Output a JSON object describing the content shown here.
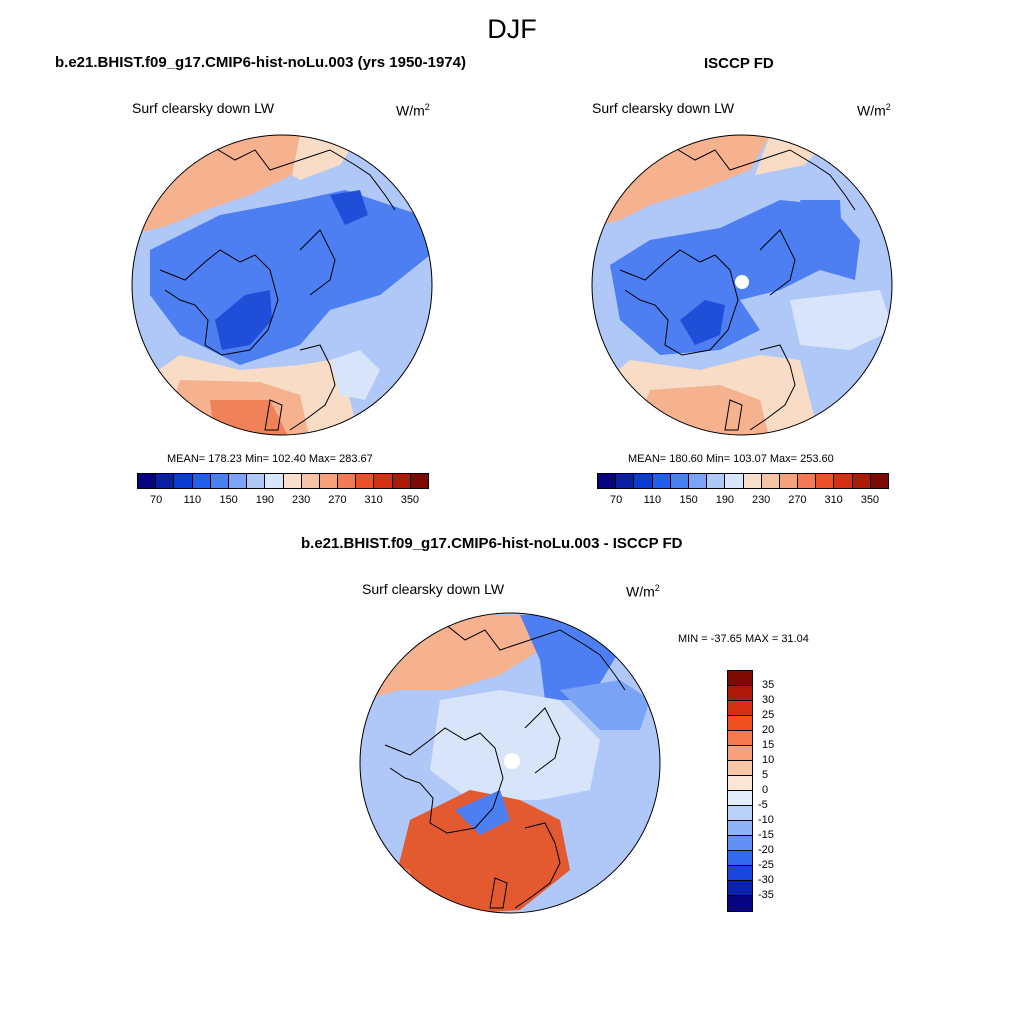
{
  "title": "DJF",
  "panels": [
    {
      "case_title": "b.e21.BHIST.f09_g17.CMIP6-hist-noLu.003 (yrs 1950-1974)",
      "variable": "Surf clearsky down LW",
      "units": "W/m",
      "units_exp": "2",
      "stats": "MEAN= 178.23  Min= 102.40  Max= 283.67",
      "stat_values": {
        "mean": 178.23,
        "min": 102.4,
        "max": 283.67
      }
    },
    {
      "case_title": "ISCCP FD",
      "variable": "Surf clearsky down LW",
      "units": "W/m",
      "units_exp": "2",
      "stats": "MEAN= 180.60  Min= 103.07  Max= 253.60",
      "stat_values": {
        "mean": 180.6,
        "min": 103.07,
        "max": 253.6
      }
    },
    {
      "case_title": "b.e21.BHIST.f09_g17.CMIP6-hist-noLu.003 - ISCCP FD",
      "variable": "Surf clearsky down LW",
      "units": "W/m",
      "units_exp": "2",
      "stats": "MIN = -37.65 MAX =  31.04",
      "stat_values": {
        "min": -37.65,
        "max": 31.04
      }
    }
  ],
  "colorbar_main": {
    "labels": [
      "70",
      "110",
      "150",
      "190",
      "230",
      "270",
      "310",
      "350"
    ],
    "colors": [
      "#08037f",
      "#0a1fa8",
      "#0b3cd2",
      "#1f5ef0",
      "#4a80f5",
      "#7ba3f7",
      "#aec8f8",
      "#d8e6fb",
      "#f9e0cc",
      "#f7c3a5",
      "#f6a27d",
      "#f47a55",
      "#ef4f2b",
      "#d52f14",
      "#ad1b08",
      "#7d0b03"
    ]
  },
  "colorbar_diff": {
    "labels": [
      "35",
      "30",
      "25",
      "20",
      "15",
      "10",
      "5",
      "0",
      "-5",
      "-10",
      "-15",
      "-20",
      "-25",
      "-30",
      "-35"
    ],
    "colors": [
      "#7d0b03",
      "#ad1b08",
      "#d52f14",
      "#f0501e",
      "#f57a4f",
      "#f7a07b",
      "#f9c8a8",
      "#fbe6d8",
      "#e2ecfb",
      "#b9d0f8",
      "#8fb1f6",
      "#6290f3",
      "#3468ee",
      "#1c45e0",
      "#0b22b0",
      "#08037f"
    ]
  },
  "map_colors": {
    "deep_blue": "#1f4fd8",
    "blue": "#4d7ff2",
    "mid_blue": "#7aa2f5",
    "light_blue": "#afc8f7",
    "pale_blue": "#d7e4fa",
    "pale_orange": "#f8dcc6",
    "light_orange": "#f6b18f",
    "orange": "#f08259",
    "red_orange": "#e35a30",
    "missing": "#ffffff"
  },
  "chart_data": [
    {
      "type": "heatmap",
      "title": "Surf clearsky down LW",
      "units": "W/m2",
      "projection": "north polar stereographic",
      "stats": {
        "mean": 178.23,
        "min": 102.4,
        "max": 283.67
      },
      "levels": [
        70,
        90,
        110,
        130,
        150,
        170,
        190,
        210,
        230,
        250,
        270,
        290,
        310,
        330,
        350
      ]
    },
    {
      "type": "heatmap",
      "title": "Surf clearsky down LW",
      "units": "W/m2",
      "projection": "north polar stereographic",
      "stats": {
        "mean": 180.6,
        "min": 103.07,
        "max": 253.6
      },
      "levels": [
        70,
        90,
        110,
        130,
        150,
        170,
        190,
        210,
        230,
        250,
        270,
        290,
        310,
        330,
        350
      ]
    },
    {
      "type": "heatmap",
      "title": "Surf clearsky down LW",
      "units": "W/m2",
      "projection": "north polar stereographic",
      "stats": {
        "min": -37.65,
        "max": 31.04
      },
      "levels": [
        -35,
        -30,
        -25,
        -20,
        -15,
        -10,
        -5,
        0,
        5,
        10,
        15,
        20,
        25,
        30,
        35
      ]
    }
  ]
}
